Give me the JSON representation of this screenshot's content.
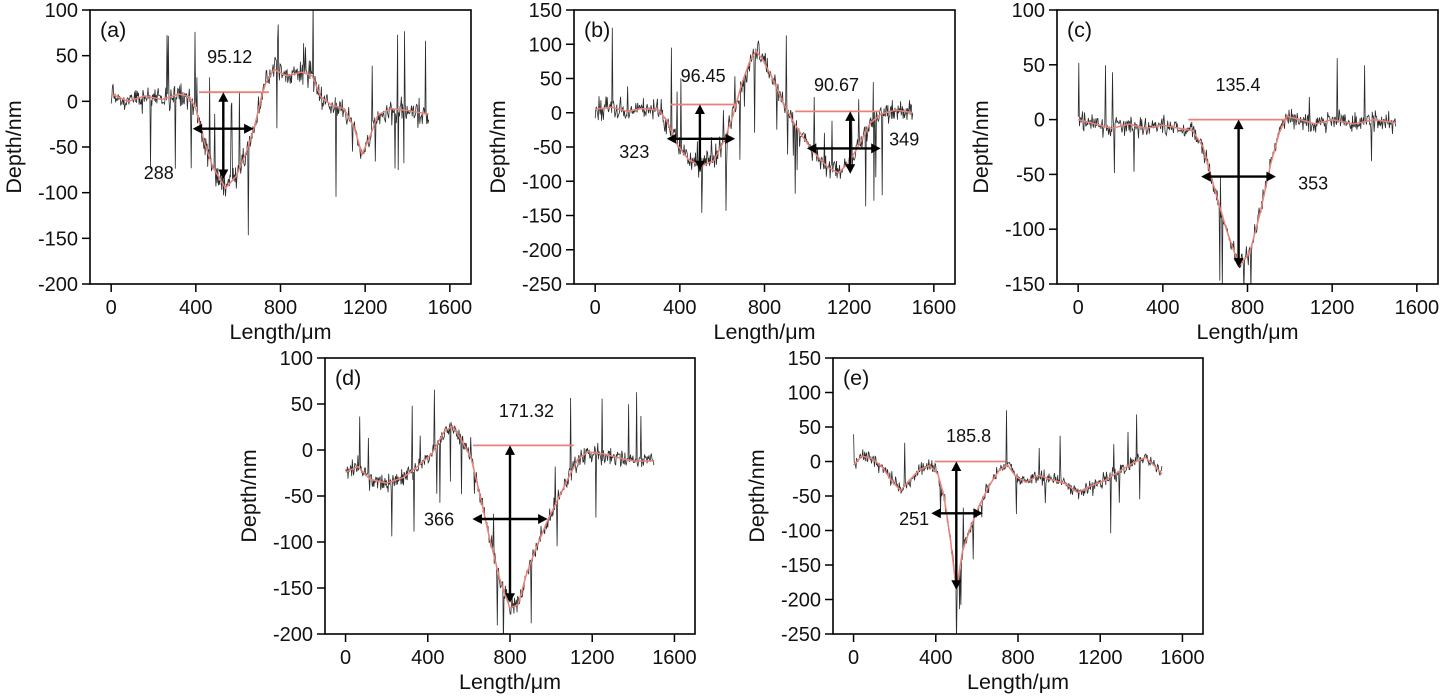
{
  "figure": {
    "xlabel": "Length/μm",
    "ylabel": "Depth/nm"
  },
  "chart_data": [
    {
      "type": "line",
      "label": "(a)",
      "seed": 11,
      "xlabel": "Length/μm",
      "ylabel": "Depth/nm",
      "xlim": [
        -100,
        1700
      ],
      "ylim": [
        -200,
        100
      ],
      "xticks": [
        0,
        400,
        800,
        1200,
        1600
      ],
      "yticks": [
        100,
        50,
        0,
        -50,
        -100,
        -150,
        -200
      ],
      "noise": 20,
      "trace_color": "#2b2b2b",
      "smooth_color": "#e8837a",
      "profile": [
        [
          0,
          8
        ],
        [
          80,
          0
        ],
        [
          160,
          6
        ],
        [
          240,
          2
        ],
        [
          320,
          8
        ],
        [
          370,
          5
        ],
        [
          400,
          -8
        ],
        [
          440,
          -45
        ],
        [
          480,
          -72
        ],
        [
          540,
          -95
        ],
        [
          590,
          -82
        ],
        [
          640,
          -55
        ],
        [
          680,
          -25
        ],
        [
          710,
          5
        ],
        [
          730,
          20
        ],
        [
          770,
          35
        ],
        [
          830,
          28
        ],
        [
          900,
          32
        ],
        [
          950,
          28
        ],
        [
          990,
          5
        ],
        [
          1040,
          -4
        ],
        [
          1100,
          -8
        ],
        [
          1150,
          -30
        ],
        [
          1185,
          -58
        ],
        [
          1220,
          -40
        ],
        [
          1260,
          -15
        ],
        [
          1320,
          -8
        ],
        [
          1400,
          -10
        ],
        [
          1500,
          -14
        ]
      ],
      "grooves": [
        {
          "baseline": {
            "y": 10,
            "x1": 415,
            "x2": 745
          },
          "v_arrow": {
            "x": 530,
            "y1": 10,
            "y2": -85
          },
          "h_arrow": {
            "y": -30,
            "x1": 385,
            "x2": 673
          },
          "depth_label": {
            "text": "95.12",
            "x": 560,
            "y": 42
          },
          "width_label": {
            "text": "288",
            "x": 225,
            "y": -85
          }
        }
      ]
    },
    {
      "type": "line",
      "label": "(b)",
      "seed": 22,
      "xlabel": "Length/μm",
      "ylabel": "Depth/nm",
      "xlim": [
        -100,
        1700
      ],
      "ylim": [
        -250,
        150
      ],
      "xticks": [
        0,
        400,
        800,
        1200,
        1600
      ],
      "yticks": [
        150,
        100,
        50,
        0,
        -50,
        -100,
        -150,
        -200,
        -250
      ],
      "noise": 24,
      "trace_color": "#2b2b2b",
      "smooth_color": "#e8837a",
      "profile": [
        [
          0,
          5
        ],
        [
          80,
          8
        ],
        [
          150,
          2
        ],
        [
          220,
          6
        ],
        [
          300,
          4
        ],
        [
          340,
          -12
        ],
        [
          390,
          -48
        ],
        [
          440,
          -68
        ],
        [
          500,
          -78
        ],
        [
          560,
          -70
        ],
        [
          610,
          -40
        ],
        [
          650,
          -5
        ],
        [
          690,
          40
        ],
        [
          730,
          75
        ],
        [
          760,
          90
        ],
        [
          790,
          78
        ],
        [
          830,
          55
        ],
        [
          880,
          20
        ],
        [
          930,
          -10
        ],
        [
          980,
          -35
        ],
        [
          1040,
          -60
        ],
        [
          1100,
          -80
        ],
        [
          1150,
          -88
        ],
        [
          1200,
          -72
        ],
        [
          1250,
          -45
        ],
        [
          1300,
          -15
        ],
        [
          1350,
          -2
        ],
        [
          1420,
          4
        ],
        [
          1500,
          0
        ]
      ],
      "grooves": [
        {
          "baseline": {
            "y": 12,
            "x1": 355,
            "x2": 665
          },
          "v_arrow": {
            "x": 495,
            "y1": 12,
            "y2": -84
          },
          "h_arrow": {
            "y": -38,
            "x1": 338,
            "x2": 661
          },
          "depth_label": {
            "text": "96.45",
            "x": 510,
            "y": 45
          },
          "width_label": {
            "text": "323",
            "x": 185,
            "y": -66
          }
        },
        {
          "baseline": {
            "y": 2,
            "x1": 945,
            "x2": 1345
          },
          "v_arrow": {
            "x": 1205,
            "y1": 2,
            "y2": -89
          },
          "h_arrow": {
            "y": -52,
            "x1": 1000,
            "x2": 1349
          },
          "depth_label": {
            "text": "90.67",
            "x": 1140,
            "y": 32
          },
          "width_label": {
            "text": "349",
            "x": 1460,
            "y": -48
          }
        }
      ]
    },
    {
      "type": "line",
      "label": "(c)",
      "seed": 33,
      "xlabel": "Length/μm",
      "ylabel": "Depth/nm",
      "xlim": [
        -100,
        1700
      ],
      "ylim": [
        -150,
        100
      ],
      "xticks": [
        0,
        400,
        800,
        1200,
        1600
      ],
      "yticks": [
        100,
        50,
        0,
        -50,
        -100,
        -150
      ],
      "noise": 13,
      "trace_color": "#2b2b2b",
      "smooth_color": "#e8837a",
      "profile": [
        [
          0,
          0
        ],
        [
          80,
          -4
        ],
        [
          160,
          -8
        ],
        [
          240,
          -4
        ],
        [
          320,
          -8
        ],
        [
          400,
          -5
        ],
        [
          480,
          -8
        ],
        [
          540,
          -10
        ],
        [
          590,
          -25
        ],
        [
          640,
          -60
        ],
        [
          700,
          -100
        ],
        [
          760,
          -133
        ],
        [
          810,
          -122
        ],
        [
          860,
          -85
        ],
        [
          910,
          -40
        ],
        [
          950,
          -12
        ],
        [
          985,
          3
        ],
        [
          1050,
          0
        ],
        [
          1120,
          -4
        ],
        [
          1200,
          0
        ],
        [
          1300,
          -4
        ],
        [
          1400,
          0
        ],
        [
          1500,
          -3
        ]
      ],
      "grooves": [
        {
          "baseline": {
            "y": 0,
            "x1": 520,
            "x2": 990
          },
          "v_arrow": {
            "x": 758,
            "y1": 0,
            "y2": -135
          },
          "h_arrow": {
            "y": -52,
            "x1": 581,
            "x2": 934
          },
          "depth_label": {
            "text": "135.4",
            "x": 755,
            "y": 26
          },
          "width_label": {
            "text": "353",
            "x": 1110,
            "y": -64
          }
        }
      ]
    },
    {
      "type": "line",
      "label": "(d)",
      "seed": 44,
      "xlabel": "Length/μm",
      "ylabel": "Depth/nm",
      "xlim": [
        -100,
        1700
      ],
      "ylim": [
        -200,
        100
      ],
      "xticks": [
        0,
        400,
        800,
        1200,
        1600
      ],
      "yticks": [
        100,
        50,
        0,
        -50,
        -100,
        -150,
        -200
      ],
      "noise": 15,
      "trace_color": "#2b2b2b",
      "smooth_color": "#e8837a",
      "profile": [
        [
          0,
          -24
        ],
        [
          60,
          -18
        ],
        [
          120,
          -32
        ],
        [
          200,
          -36
        ],
        [
          280,
          -30
        ],
        [
          350,
          -18
        ],
        [
          420,
          -4
        ],
        [
          480,
          20
        ],
        [
          520,
          26
        ],
        [
          560,
          12
        ],
        [
          610,
          -8
        ],
        [
          650,
          -45
        ],
        [
          700,
          -95
        ],
        [
          750,
          -140
        ],
        [
          800,
          -172
        ],
        [
          840,
          -168
        ],
        [
          880,
          -135
        ],
        [
          930,
          -105
        ],
        [
          980,
          -78
        ],
        [
          1030,
          -55
        ],
        [
          1080,
          -32
        ],
        [
          1130,
          -10
        ],
        [
          1180,
          -2
        ],
        [
          1250,
          -4
        ],
        [
          1320,
          -8
        ],
        [
          1400,
          -12
        ],
        [
          1500,
          -12
        ]
      ],
      "grooves": [
        {
          "baseline": {
            "y": 5,
            "x1": 620,
            "x2": 1110
          },
          "v_arrow": {
            "x": 800,
            "y1": 5,
            "y2": -166
          },
          "h_arrow": {
            "y": -75,
            "x1": 617,
            "x2": 983
          },
          "depth_label": {
            "text": "171.32",
            "x": 880,
            "y": 36
          },
          "width_label": {
            "text": "366",
            "x": 455,
            "y": -82
          }
        }
      ]
    },
    {
      "type": "line",
      "label": "(e)",
      "seed": 55,
      "xlabel": "Length/μm",
      "ylabel": "Depth/nm",
      "xlim": [
        -100,
        1700
      ],
      "ylim": [
        -250,
        150
      ],
      "xticks": [
        0,
        400,
        800,
        1200,
        1600
      ],
      "yticks": [
        150,
        100,
        50,
        0,
        -50,
        -100,
        -150,
        -200,
        -250
      ],
      "noise": 16,
      "trace_color": "#2b2b2b",
      "smooth_color": "#e8837a",
      "profile": [
        [
          0,
          -5
        ],
        [
          40,
          8
        ],
        [
          90,
          4
        ],
        [
          140,
          -8
        ],
        [
          190,
          -30
        ],
        [
          230,
          -42
        ],
        [
          270,
          -28
        ],
        [
          320,
          -12
        ],
        [
          370,
          -6
        ],
        [
          410,
          -18
        ],
        [
          440,
          -50
        ],
        [
          470,
          -110
        ],
        [
          500,
          -186
        ],
        [
          530,
          -130
        ],
        [
          570,
          -95
        ],
        [
          610,
          -65
        ],
        [
          660,
          -35
        ],
        [
          710,
          -12
        ],
        [
          750,
          -5
        ],
        [
          790,
          -22
        ],
        [
          840,
          -30
        ],
        [
          900,
          -20
        ],
        [
          960,
          -26
        ],
        [
          1030,
          -32
        ],
        [
          1090,
          -45
        ],
        [
          1150,
          -36
        ],
        [
          1220,
          -28
        ],
        [
          1290,
          -15
        ],
        [
          1360,
          -2
        ],
        [
          1420,
          6
        ],
        [
          1470,
          -8
        ],
        [
          1500,
          -18
        ]
      ],
      "grooves": [
        {
          "baseline": {
            "y": 0,
            "x1": 395,
            "x2": 740
          },
          "v_arrow": {
            "x": 500,
            "y1": 0,
            "y2": -186
          },
          "h_arrow": {
            "y": -75,
            "x1": 378,
            "x2": 629
          },
          "depth_label": {
            "text": "185.8",
            "x": 560,
            "y": 28
          },
          "width_label": {
            "text": "251",
            "x": 295,
            "y": -92
          }
        }
      ]
    }
  ]
}
